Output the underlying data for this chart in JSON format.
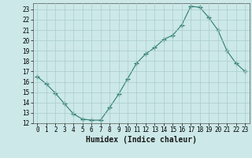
{
  "x": [
    0,
    1,
    2,
    3,
    4,
    5,
    6,
    7,
    8,
    9,
    10,
    11,
    12,
    13,
    14,
    15,
    16,
    17,
    18,
    19,
    20,
    21,
    22,
    23
  ],
  "y": [
    16.5,
    15.8,
    14.9,
    13.9,
    12.9,
    12.4,
    12.3,
    12.3,
    13.5,
    14.8,
    16.3,
    17.8,
    18.7,
    19.3,
    20.1,
    20.5,
    21.5,
    23.3,
    23.2,
    22.2,
    21.0,
    19.0,
    17.8,
    17.0
  ],
  "line_color": "#2e7d6e",
  "marker": "+",
  "marker_size": 4,
  "bg_color": "#cce8e8",
  "grid_color": "#aacccc",
  "xlabel": "Humidex (Indice chaleur)",
  "xlim": [
    -0.5,
    23.5
  ],
  "ylim": [
    12,
    23.6
  ],
  "yticks": [
    12,
    13,
    14,
    15,
    16,
    17,
    18,
    19,
    20,
    21,
    22,
    23
  ],
  "xticks": [
    0,
    1,
    2,
    3,
    4,
    5,
    6,
    7,
    8,
    9,
    10,
    11,
    12,
    13,
    14,
    15,
    16,
    17,
    18,
    19,
    20,
    21,
    22,
    23
  ],
  "tick_fontsize": 5.5,
  "xlabel_fontsize": 7
}
